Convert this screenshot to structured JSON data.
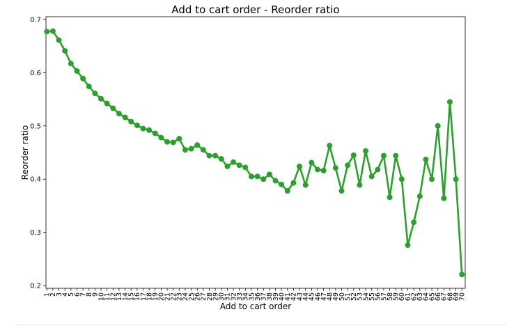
{
  "chart_data": {
    "type": "line",
    "title": "Add to cart order - Reorder ratio",
    "xlabel": "Add to cart order",
    "ylabel": "Reorder ratio",
    "x": [
      1,
      2,
      3,
      4,
      5,
      6,
      7,
      8,
      9,
      10,
      11,
      12,
      13,
      14,
      15,
      16,
      17,
      18,
      19,
      20,
      21,
      22,
      23,
      24,
      25,
      26,
      27,
      28,
      29,
      30,
      31,
      32,
      33,
      34,
      35,
      36,
      37,
      38,
      39,
      40,
      41,
      42,
      43,
      44,
      45,
      46,
      47,
      48,
      49,
      50,
      51,
      52,
      53,
      54,
      55,
      56,
      57,
      58,
      59,
      60,
      61,
      62,
      63,
      64,
      65,
      66,
      67,
      68,
      69,
      70
    ],
    "series": [
      {
        "values": [
          0.677,
          0.678,
          0.661,
          0.641,
          0.617,
          0.603,
          0.589,
          0.574,
          0.561,
          0.551,
          0.542,
          0.533,
          0.523,
          0.516,
          0.508,
          0.501,
          0.495,
          0.492,
          0.486,
          0.478,
          0.47,
          0.469,
          0.476,
          0.455,
          0.457,
          0.464,
          0.455,
          0.444,
          0.444,
          0.438,
          0.424,
          0.432,
          0.426,
          0.422,
          0.405,
          0.405,
          0.4,
          0.409,
          0.397,
          0.39,
          0.378,
          0.393,
          0.424,
          0.389,
          0.431,
          0.418,
          0.416,
          0.463,
          0.421,
          0.378,
          0.426,
          0.445,
          0.389,
          0.453,
          0.405,
          0.418,
          0.444,
          0.366,
          0.444,
          0.4,
          0.276,
          0.319,
          0.368,
          0.437,
          0.4,
          0.5,
          0.364,
          0.545,
          0.4,
          0.221
        ],
        "color": "#2ca02c"
      }
    ],
    "ylim": [
      0.195,
      0.705
    ],
    "yticks": [
      0.2,
      0.3,
      0.4,
      0.5,
      0.6,
      0.7
    ],
    "ytick_labels": [
      "0.2",
      "0.3",
      "0.4",
      "0.5",
      "0.6",
      "0.7"
    ],
    "grid": false,
    "legend": "none"
  }
}
